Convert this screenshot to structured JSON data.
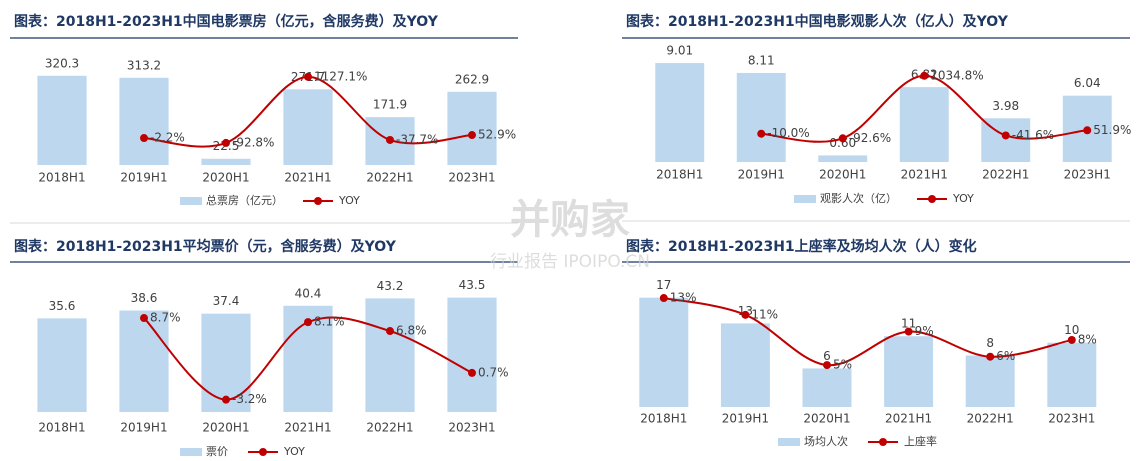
{
  "watermark": {
    "logo": "并购家",
    "text": "行业报告 IPOIPO.CN"
  },
  "chart_data": [
    {
      "type": "combo",
      "title": "图表：2018H1-2023H1中国电影票房（亿元，含服务费）及YOY",
      "categories": [
        "2018H1",
        "2019H1",
        "2020H1",
        "2021H1",
        "2022H1",
        "2023H1"
      ],
      "series": [
        {
          "name": "总票房（亿元）",
          "color": "#bdd7ee",
          "values": [
            320.3,
            313.2,
            22.5,
            271.7,
            171.9,
            262.9
          ]
        },
        {
          "name": "YOY",
          "color": "#c00000",
          "axis": "y2",
          "values": [
            null,
            -2.2,
            -92.8,
            1127.1,
            -37.7,
            52.9
          ],
          "value_labels": [
            null,
            "-2.2%",
            "-92.8%",
            "1127.1%",
            "-37.7%",
            "52.9%"
          ]
        }
      ],
      "ylim": [
        0,
        395
      ],
      "y2lim": [
        -500,
        1530
      ]
    },
    {
      "type": "combo",
      "title": "图表：2018H1-2023H1中国电影观影人次（亿人）及YOY",
      "categories": [
        "2018H1",
        "2019H1",
        "2020H1",
        "2021H1",
        "2022H1",
        "2023H1"
      ],
      "series": [
        {
          "name": "观影人次（亿）",
          "color": "#bdd7ee",
          "values": [
            9.01,
            8.11,
            0.6,
            6.82,
            3.98,
            6.04
          ],
          "value_labels": [
            "9.01",
            "8.11",
            "0.60",
            "6.82",
            "3.98",
            "6.04"
          ]
        },
        {
          "name": "YOY",
          "color": "#c00000",
          "axis": "y2",
          "values": [
            null,
            -10.0,
            -92.6,
            1034.8,
            -41.6,
            51.9
          ],
          "value_labels": [
            null,
            "-10.0%",
            "-92.6%",
            "1034.8%",
            "-41.6%",
            "51.9%"
          ]
        }
      ],
      "ylim": [
        0,
        10.2
      ],
      "y2lim": [
        -520,
        1500
      ]
    },
    {
      "type": "combo",
      "title": "图表：2018H1-2023H1平均票价（元，含服务费）及YOY",
      "categories": [
        "2018H1",
        "2019H1",
        "2020H1",
        "2021H1",
        "2022H1",
        "2023H1"
      ],
      "series": [
        {
          "name": "票价",
          "color": "#bdd7ee",
          "values": [
            35.6,
            38.6,
            37.4,
            40.4,
            43.2,
            43.5
          ]
        },
        {
          "name": "YOY",
          "color": "#c00000",
          "axis": "y2",
          "values": [
            null,
            8.7,
            -3.2,
            8.1,
            6.8,
            0.7
          ],
          "value_labels": [
            null,
            "8.7%",
            "-3.2%",
            "8.1%",
            "6.8%",
            "0.7%"
          ]
        }
      ],
      "ylim": [
        0,
        54
      ],
      "y2lim": [
        -5,
        15.7
      ]
    },
    {
      "type": "combo",
      "title": "图表：2018H1-2023H1上座率及场均人次（人）变化",
      "categories": [
        "2018H1",
        "2019H1",
        "2020H1",
        "2021H1",
        "2022H1",
        "2023H1"
      ],
      "series": [
        {
          "name": "场均人次",
          "color": "#bdd7ee",
          "values": [
            17,
            13,
            6,
            11,
            8,
            10
          ]
        },
        {
          "name": "上座率",
          "color": "#c00000",
          "axis": "y2",
          "values": [
            13,
            11,
            5,
            9,
            6,
            8
          ],
          "value_labels": [
            "13%",
            "11%",
            "5%",
            "9%",
            "6%",
            "8%"
          ]
        }
      ],
      "ylim": [
        0,
        18.5
      ],
      "y2lim": [
        0,
        14.2
      ]
    }
  ]
}
